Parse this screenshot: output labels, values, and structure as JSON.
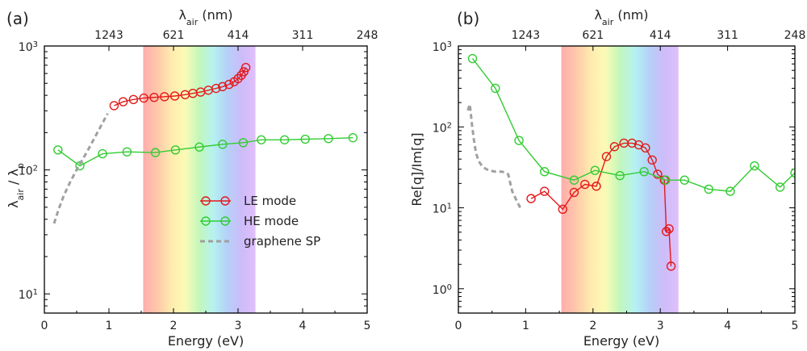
{
  "colors": {
    "le": "#e41a1c",
    "he": "#33cc33",
    "sp": "#a0a0a0",
    "spectrum": [
      "#ff9e9e",
      "#ffbe9a",
      "#ffe7a0",
      "#fafaa8",
      "#b8f5b0",
      "#a8f0ee",
      "#a8c8f8",
      "#c4b0f8",
      "#dab4fa"
    ]
  },
  "legend": {
    "le": "LE mode",
    "he": "HE mode",
    "sp": "graphene SP"
  },
  "chart_data": [
    {
      "type": "line",
      "panel_label": "(a)",
      "xlabel": "Energy (eV)",
      "ylabel_main": "λ",
      "ylabel_sub1": "air",
      "ylabel_sep": " / λ",
      "ylabel_sub2": "p",
      "top_xlabel_main": "λ",
      "top_xlabel_sub": "air",
      "top_xlabel_unit": " (nm)",
      "xlim": [
        0,
        5
      ],
      "ylim": [
        7,
        1000
      ],
      "yscale": "log",
      "xticks": [
        0,
        1,
        2,
        3,
        4,
        5
      ],
      "yticks": [
        {
          "value": 10,
          "base": "10",
          "exp": "1"
        },
        {
          "value": 100,
          "base": "10",
          "exp": "2"
        },
        {
          "value": 1000,
          "base": "10",
          "exp": "3"
        }
      ],
      "top_ticks": [
        {
          "x": 1.0,
          "label": "1243"
        },
        {
          "x": 2.0,
          "label": "621"
        },
        {
          "x": 3.0,
          "label": "414"
        },
        {
          "x": 4.0,
          "label": "311"
        },
        {
          "x": 5.0,
          "label": "248"
        }
      ],
      "band": [
        1.53,
        3.27
      ],
      "legend_position": "center",
      "series": [
        {
          "name": "LE mode",
          "key": "le",
          "x": [
            1.08,
            1.22,
            1.38,
            1.54,
            1.7,
            1.86,
            2.02,
            2.18,
            2.3,
            2.42,
            2.54,
            2.66,
            2.76,
            2.86,
            2.94,
            3.0,
            3.05,
            3.09,
            3.12
          ],
          "y": [
            330,
            355,
            370,
            380,
            385,
            390,
            395,
            405,
            415,
            425,
            440,
            455,
            470,
            490,
            515,
            545,
            580,
            620,
            670
          ]
        },
        {
          "name": "HE mode",
          "key": "he",
          "x": [
            0.21,
            0.55,
            0.9,
            1.28,
            1.72,
            2.03,
            2.4,
            2.76,
            3.08,
            3.36,
            3.72,
            4.04,
            4.4,
            4.78
          ],
          "y": [
            145,
            108,
            135,
            140,
            138,
            145,
            153,
            161,
            166,
            175,
            175,
            177,
            179,
            182
          ]
        },
        {
          "name": "graphene SP",
          "key": "sp",
          "dashed": true,
          "x": [
            0.15,
            0.22,
            0.3,
            0.4,
            0.52,
            0.66,
            0.82,
            0.98
          ],
          "y": [
            37,
            48,
            62,
            80,
            105,
            140,
            200,
            285
          ]
        }
      ]
    },
    {
      "type": "line",
      "panel_label": "(b)",
      "xlabel": "Energy (eV)",
      "ylabel": "Re[q]/Im[q]",
      "top_xlabel_main": "λ",
      "top_xlabel_sub": "air",
      "top_xlabel_unit": " (nm)",
      "xlim": [
        0,
        5
      ],
      "ylim": [
        0.5,
        1000
      ],
      "yscale": "log",
      "xticks": [
        0,
        1,
        2,
        3,
        4,
        5
      ],
      "yticks": [
        {
          "value": 1,
          "base": "10",
          "exp": "0"
        },
        {
          "value": 10,
          "base": "10",
          "exp": "1"
        },
        {
          "value": 100,
          "base": "10",
          "exp": "2"
        },
        {
          "value": 1000,
          "base": "10",
          "exp": "3"
        }
      ],
      "top_ticks": [
        {
          "x": 1.0,
          "label": "1243"
        },
        {
          "x": 2.0,
          "label": "621"
        },
        {
          "x": 3.0,
          "label": "414"
        },
        {
          "x": 4.0,
          "label": "311"
        },
        {
          "x": 5.0,
          "label": "248"
        }
      ],
      "band": [
        1.53,
        3.27
      ],
      "series": [
        {
          "name": "LE mode",
          "key": "le",
          "x": [
            1.08,
            1.28,
            1.55,
            1.72,
            1.88,
            2.05,
            2.2,
            2.32,
            2.46,
            2.58,
            2.68,
            2.78,
            2.88,
            2.96,
            3.06,
            3.09,
            3.13,
            3.16
          ],
          "y": [
            13,
            16,
            9.6,
            15.5,
            19.5,
            18.5,
            43,
            57,
            63,
            63,
            60,
            55,
            39,
            26,
            22,
            5.1,
            5.5,
            1.9
          ]
        },
        {
          "name": "HE mode",
          "key": "he",
          "x": [
            0.21,
            0.55,
            0.9,
            1.28,
            1.72,
            2.03,
            2.4,
            2.76,
            3.08,
            3.36,
            3.72,
            4.04,
            4.4,
            4.78,
            5.0
          ],
          "y": [
            700,
            300,
            68,
            28,
            22,
            29,
            25,
            28,
            22,
            22,
            17,
            16,
            33,
            18,
            27
          ]
        },
        {
          "name": "graphene SP",
          "key": "sp",
          "dashed": true,
          "x": [
            0.14,
            0.17,
            0.2,
            0.23,
            0.26,
            0.3,
            0.36,
            0.45,
            0.55,
            0.65,
            0.74,
            0.8,
            0.87,
            0.93
          ],
          "y": [
            160,
            190,
            110,
            70,
            48,
            38,
            32,
            29,
            28,
            28,
            26,
            16,
            12,
            9.6
          ]
        }
      ]
    }
  ]
}
